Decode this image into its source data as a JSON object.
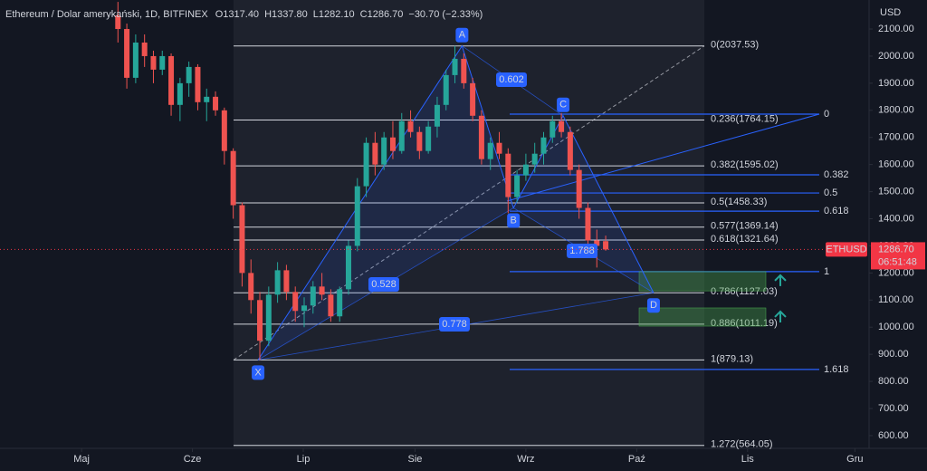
{
  "chart_data": {
    "type": "candlestick",
    "title": "Ethereum / Dolar amerykański, 1D, BITFINEX",
    "quote": [
      "O1317.40",
      "H1337.80",
      "L1282.10",
      "C1286.70",
      "−30.70 (−2.33%)"
    ],
    "y_unit": "USD",
    "ylim": [
      553,
      2207
    ],
    "yticks": [
      {
        "value": 2100,
        "label": "2100.00"
      },
      {
        "value": 2000,
        "label": "2000.00"
      },
      {
        "value": 1900,
        "label": "1900.00"
      },
      {
        "value": 1800,
        "label": "1800.00"
      },
      {
        "value": 1700,
        "label": "1700.00"
      },
      {
        "value": 1600,
        "label": "1600.00"
      },
      {
        "value": 1500,
        "label": "1500.00"
      },
      {
        "value": 1400,
        "label": "1400.00"
      },
      {
        "value": 1300,
        "label": "1300.00"
      },
      {
        "value": 1200,
        "label": "1200.00"
      },
      {
        "value": 1100,
        "label": "1100.00"
      },
      {
        "value": 1000,
        "label": "1000.00"
      },
      {
        "value": 900,
        "label": "900.00"
      },
      {
        "value": 800,
        "label": "800.00"
      },
      {
        "value": 700,
        "label": "700.00"
      },
      {
        "value": 600,
        "label": "600.00"
      }
    ],
    "xlim": [
      -13.3,
      84.7
    ],
    "xticks": [
      {
        "value": -4.1,
        "label": "Maj"
      },
      {
        "value": 8.4,
        "label": "Cze"
      },
      {
        "value": 20.9,
        "label": "Lip"
      },
      {
        "value": 33.5,
        "label": "Sie"
      },
      {
        "value": 46,
        "label": "Wrz"
      },
      {
        "value": 58.5,
        "label": "Paź"
      },
      {
        "value": 71,
        "label": "Lis"
      },
      {
        "value": 83.1,
        "label": "Gru"
      }
    ],
    "up_color": "#26a69a",
    "down_color": "#ef5350",
    "open": [
      2150,
      2100,
      1920,
      2050,
      2000,
      1950,
      2000,
      1820,
      1900,
      1960,
      1830,
      1850,
      1800,
      1650,
      1450,
      1200,
      1100,
      950,
      1120,
      1210,
      1130,
      1060,
      1080,
      1150,
      1120,
      1040,
      1140,
      1300,
      1520,
      1680,
      1600,
      1700,
      1650,
      1760,
      1720,
      1650,
      1740,
      1820,
      1930,
      1990,
      1900,
      1780,
      1620,
      1680,
      1640,
      1480,
      1560,
      1600,
      1640,
      1700,
      1760,
      1720,
      1580,
      1440,
      1320,
      1317.4
    ],
    "high": [
      2200,
      2120,
      2080,
      2080,
      2020,
      2020,
      2010,
      1920,
      1980,
      1970,
      1880,
      1870,
      1810,
      1660,
      1460,
      1250,
      1130,
      1150,
      1240,
      1230,
      1150,
      1110,
      1170,
      1200,
      1140,
      1150,
      1320,
      1550,
      1700,
      1720,
      1720,
      1760,
      1790,
      1800,
      1740,
      1760,
      1850,
      1950,
      2037.53,
      2010,
      1920,
      1800,
      1700,
      1720,
      1660,
      1580,
      1640,
      1680,
      1720,
      1780,
      1790,
      1740,
      1600,
      1460,
      1360,
      1337.8
    ],
    "low": [
      2050,
      1880,
      1900,
      1960,
      1900,
      1930,
      1780,
      1760,
      1850,
      1800,
      1760,
      1780,
      1600,
      1400,
      1150,
      1050,
      879.13,
      930,
      1090,
      1100,
      1020,
      1000,
      1050,
      1100,
      1020,
      1020,
      1120,
      1280,
      1480,
      1560,
      1580,
      1620,
      1640,
      1700,
      1620,
      1640,
      1700,
      1800,
      1900,
      1880,
      1760,
      1600,
      1580,
      1620,
      1420,
      1460,
      1540,
      1570,
      1600,
      1680,
      1700,
      1560,
      1400,
      1280,
      1220,
      1282.1
    ],
    "close": [
      2100,
      1920,
      2050,
      2000,
      1950,
      2000,
      1820,
      1900,
      1960,
      1830,
      1850,
      1800,
      1650,
      1450,
      1200,
      1100,
      950,
      1120,
      1210,
      1130,
      1060,
      1080,
      1150,
      1120,
      1040,
      1140,
      1300,
      1520,
      1680,
      1600,
      1700,
      1650,
      1760,
      1720,
      1650,
      1740,
      1820,
      1930,
      1990,
      1900,
      1780,
      1620,
      1680,
      1640,
      1480,
      1560,
      1600,
      1640,
      1700,
      1760,
      1720,
      1580,
      1440,
      1320,
      1300,
      1286.7
    ],
    "last_price": {
      "value": 1286.7,
      "label": "1286.70"
    },
    "symbol": "ETHUSD",
    "countdown": "06:51:48",
    "fib_levels": [
      {
        "value": 2037.53,
        "label": "0(2037.53)"
      },
      {
        "value": 1764.15,
        "label": "0.236(1764.15)"
      },
      {
        "value": 1595.02,
        "label": "0.382(1595.02)"
      },
      {
        "value": 1458.33,
        "label": "0.5(1458.33)"
      },
      {
        "value": 1369.14,
        "label": "0.577(1369.14)"
      },
      {
        "value": 1321.64,
        "label": "0.618(1321.64)"
      },
      {
        "value": 1127.03,
        "label": "0.786(1127.03)"
      },
      {
        "value": 1011.19,
        "label": "0.886(1011.19)"
      },
      {
        "value": 879.13,
        "label": "1(879.13)"
      },
      {
        "value": 564.05,
        "label": "1.272(564.05)"
      }
    ],
    "projection_levels": [
      {
        "value": 1786,
        "label": "0"
      },
      {
        "value": 1562,
        "label": "0.382"
      },
      {
        "value": 1495,
        "label": "0.5"
      },
      {
        "value": 1428,
        "label": "0.618"
      },
      {
        "value": 1205,
        "label": "1"
      },
      {
        "value": 844,
        "label": "1.618"
      }
    ],
    "pattern_points": [
      {
        "label": "X",
        "x": 15.8,
        "value": 879.13
      },
      {
        "label": "A",
        "x": 38.8,
        "value": 2037.53
      },
      {
        "label": "B",
        "x": 44.6,
        "value": 1440
      },
      {
        "label": "C",
        "x": 50.2,
        "value": 1780
      },
      {
        "label": "D",
        "x": 60.4,
        "value": 1127
      }
    ],
    "ratios": [
      "0.602",
      "0.528",
      "0.778",
      "1.788"
    ],
    "zones": [
      {
        "high": 1205,
        "low": 1134
      },
      {
        "high": 1071,
        "low": 1004
      }
    ]
  }
}
